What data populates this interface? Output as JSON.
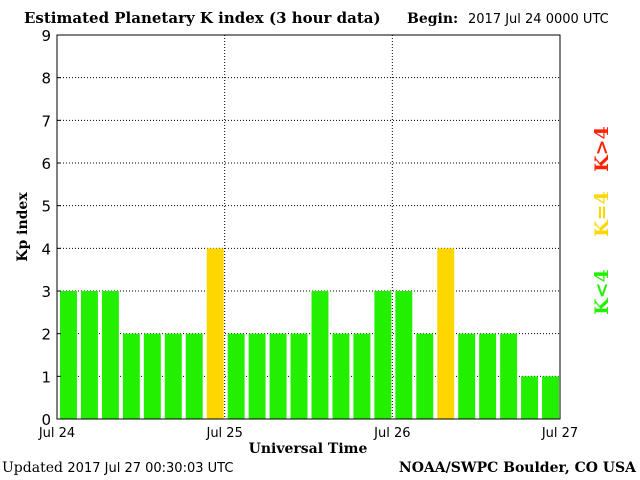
{
  "header": {
    "title": "Estimated Planetary K index (3 hour data)",
    "begin_label": "Begin:",
    "begin_value": "2017 Jul 24 0000 UTC"
  },
  "footer": {
    "updated_label": "Updated",
    "updated_value": "2017 Jul 27 00:30:03 UTC",
    "source": "NOAA/SWPC Boulder, CO USA"
  },
  "legend": {
    "below": "K<4",
    "equal": "K=4",
    "above": "K>4"
  },
  "colors": {
    "below": "#22f000",
    "equal": "#ffd700",
    "above": "#ff2200"
  },
  "chart_data": {
    "type": "bar",
    "title": "Estimated Planetary K index (3 hour data)",
    "xlabel": "Universal Time",
    "ylabel": "Kp index",
    "ylim": [
      0,
      9
    ],
    "yticks": [
      "0",
      "1",
      "2",
      "3",
      "4",
      "5",
      "6",
      "7",
      "8",
      "9"
    ],
    "xticks": [
      "Jul 24",
      "Jul 25",
      "Jul 26",
      "Jul 27"
    ],
    "interval_hours": 3,
    "grid": true,
    "values": [
      3,
      3,
      3,
      2,
      2,
      2,
      2,
      4,
      2,
      2,
      2,
      2,
      3,
      2,
      2,
      3,
      3,
      2,
      4,
      2,
      2,
      2,
      1,
      1
    ]
  }
}
